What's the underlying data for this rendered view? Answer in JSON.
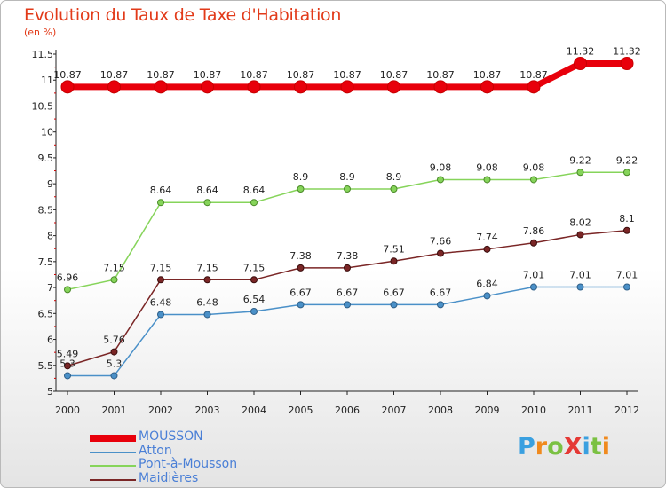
{
  "title": "Evolution du Taux de Taxe d'Habitation",
  "subtitle": "(en %)",
  "logo": "ProXiti",
  "chart_data": {
    "type": "line",
    "title": "Evolution du Taux de Taxe d'Habitation",
    "ylabel": "(en %)",
    "x": [
      "2000",
      "2001",
      "2002",
      "2003",
      "2004",
      "2005",
      "2006",
      "2007",
      "2008",
      "2009",
      "2010",
      "2011",
      "2012"
    ],
    "yticks": [
      "5",
      "5.5",
      "6",
      "6.5",
      "7",
      "7.5",
      "8",
      "8.5",
      "9",
      "9.5",
      "10",
      "10.5",
      "11",
      "11.5"
    ],
    "ylim": [
      5,
      11.5
    ],
    "grid": false,
    "legend": "bottom-left",
    "series": [
      {
        "name": "MOUSSON",
        "color": "#e8000b",
        "labels": [
          "10.87",
          "10.87",
          "10.87",
          "10.87",
          "10.87",
          "10.87",
          "10.87",
          "10.87",
          "10.87",
          "10.87",
          "10.87",
          "11.32",
          "11.32"
        ],
        "values": [
          10.87,
          10.87,
          10.87,
          10.87,
          10.87,
          10.87,
          10.87,
          10.87,
          10.87,
          10.87,
          10.87,
          11.32,
          11.32
        ]
      },
      {
        "name": "Atton",
        "color": "#4a90c8",
        "labels": [
          "5.3",
          "5.3",
          "6.48",
          "6.48",
          "6.54",
          "6.67",
          "6.67",
          "6.67",
          "6.67",
          "6.84",
          "7.01",
          "7.01",
          "7.01"
        ],
        "values": [
          5.3,
          5.3,
          6.48,
          6.48,
          6.54,
          6.67,
          6.67,
          6.67,
          6.67,
          6.84,
          7.01,
          7.01,
          7.01
        ]
      },
      {
        "name": "Pont-à-Mousson",
        "color": "#86d45a",
        "labels": [
          "6.96",
          "7.15",
          "8.64",
          "8.64",
          "8.64",
          "8.9",
          "8.9",
          "8.9",
          "9.08",
          "9.08",
          "9.08",
          "9.22",
          "9.22"
        ],
        "values": [
          6.96,
          7.15,
          8.64,
          8.64,
          8.64,
          8.9,
          8.9,
          8.9,
          9.08,
          9.08,
          9.08,
          9.22,
          9.22
        ]
      },
      {
        "name": "Maidières",
        "color": "#7a2626",
        "labels": [
          "5.49",
          "5.76",
          "7.15",
          "7.15",
          "7.15",
          "7.38",
          "7.38",
          "7.51",
          "7.66",
          "7.74",
          "7.86",
          "8.02",
          "8.1"
        ],
        "values": [
          5.49,
          5.76,
          7.15,
          7.15,
          7.15,
          7.38,
          7.38,
          7.51,
          7.66,
          7.74,
          7.86,
          8.02,
          8.1
        ]
      }
    ]
  }
}
